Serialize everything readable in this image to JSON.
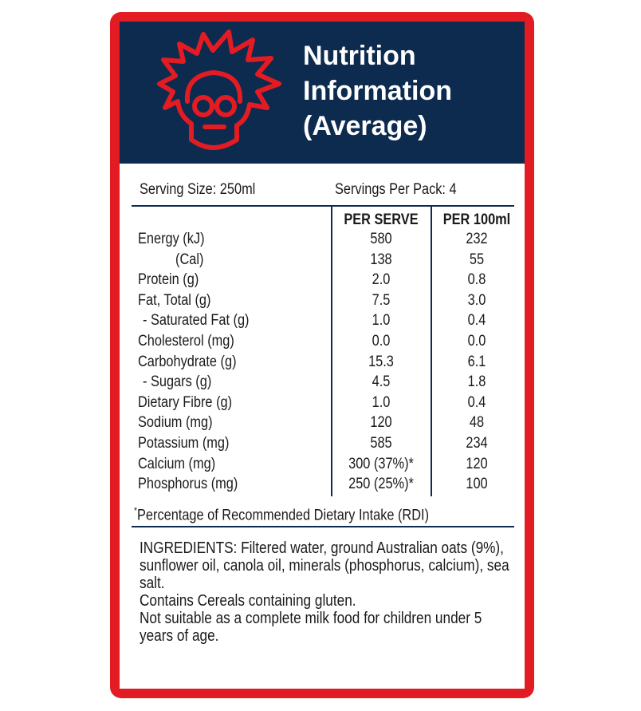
{
  "header": {
    "title_lines": [
      "Nutrition",
      "Information",
      "(Average)"
    ]
  },
  "serving": {
    "size": "Serving Size: 250ml",
    "per_pack": "Servings Per Pack: 4"
  },
  "table": {
    "columns": [
      "PER SERVE",
      "PER 100ml"
    ],
    "rows": [
      [
        "Energy (kJ)",
        "580",
        "232"
      ],
      [
        "(Cal)",
        "138",
        "55"
      ],
      [
        "Protein (g)",
        "2.0",
        "0.8"
      ],
      [
        "Fat, Total (g)",
        "7.5",
        "3.0"
      ],
      [
        "- Saturated Fat (g)",
        "1.0",
        "0.4"
      ],
      [
        "Cholesterol (mg)",
        "0.0",
        "0.0"
      ],
      [
        "Carbohydrate (g)",
        "15.3",
        "6.1"
      ],
      [
        "- Sugars (g)",
        "4.5",
        "1.8"
      ],
      [
        "Dietary Fibre (g)",
        "1.0",
        "0.4"
      ],
      [
        "Sodium (mg)",
        "120",
        "48"
      ],
      [
        "Potassium (mg)",
        "585",
        "234"
      ],
      [
        "Calcium (mg)",
        "300 (37%)*",
        "120"
      ],
      [
        "Phosphorus (mg)",
        "250 (25%)*",
        "100"
      ]
    ]
  },
  "footnote": {
    "mark": "*",
    "text": "Percentage of Recommended Dietary Intake (RDI)"
  },
  "ingredients": [
    "INGREDIENTS: Filtered water, ground Australian oats (9%), sunflower oil, canola oil, minerals (phosphorus, calcium), sea salt.",
    "Contains Cereals containing gluten.",
    "Not suitable as a complete milk food for children under 5 years of age."
  ]
}
